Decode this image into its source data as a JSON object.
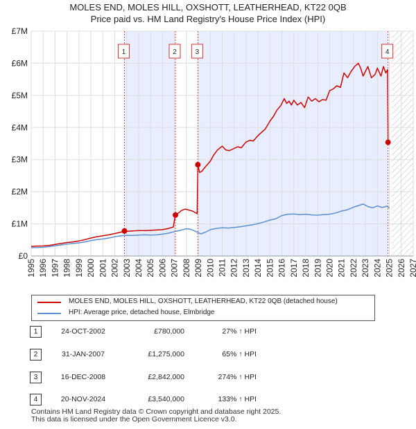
{
  "header": {
    "title_line1": "MOLES END, MOLES HILL, OXSHOTT, LEATHERHEAD, KT22 0QB",
    "title_line2": "Price paid vs. HM Land Registry's House Price Index (HPI)"
  },
  "colors": {
    "property": "#cc0000",
    "hpi": "#5b8fd0",
    "shade": "#e8eeff",
    "hatch": "#bbbbbb",
    "grid": "#dddddd",
    "marker_line": "#dd4444"
  },
  "chart_data": {
    "type": "line",
    "xlim": [
      1995,
      2027
    ],
    "ylim": [
      0,
      7000000
    ],
    "y_ticks": [
      {
        "value": 0,
        "label": "£0"
      },
      {
        "value": 1000000,
        "label": "£1M"
      },
      {
        "value": 2000000,
        "label": "£2M"
      },
      {
        "value": 3000000,
        "label": "£3M"
      },
      {
        "value": 4000000,
        "label": "£4M"
      },
      {
        "value": 5000000,
        "label": "£5M"
      },
      {
        "value": 6000000,
        "label": "£6M"
      },
      {
        "value": 7000000,
        "label": "£7M"
      }
    ],
    "x_ticks": [
      "1995",
      "1996",
      "1997",
      "1998",
      "1999",
      "2000",
      "2001",
      "2002",
      "2003",
      "2004",
      "2005",
      "2006",
      "2007",
      "2008",
      "2009",
      "2010",
      "2011",
      "2012",
      "2013",
      "2014",
      "2015",
      "2016",
      "2017",
      "2018",
      "2019",
      "2020",
      "2021",
      "2022",
      "2023",
      "2024",
      "2025",
      "2026",
      "2027"
    ],
    "grid": true,
    "shaded_ranges": [
      [
        2002.81,
        2007.08
      ],
      [
        2008.96,
        2024.89
      ]
    ],
    "future_hatch_from": 2025.2,
    "series": [
      {
        "name": "MOLES END, MOLES HILL, OXSHOTT, LEATHERHEAD, KT22 0QB (detached house)",
        "x": [
          1995.0,
          1995.5,
          1996.0,
          1996.5,
          1997.0,
          1997.5,
          1998.0,
          1998.5,
          1999.0,
          1999.5,
          2000.0,
          2000.5,
          2001.0,
          2001.5,
          2002.0,
          2002.5,
          2002.81,
          2003.0,
          2003.5,
          2004.0,
          2004.5,
          2005.0,
          2005.5,
          2006.0,
          2006.5,
          2006.9,
          2007.08,
          2007.3,
          2007.6,
          2007.9,
          2008.2,
          2008.5,
          2008.9,
          2008.96,
          2009.1,
          2009.3,
          2009.6,
          2010.0,
          2010.3,
          2010.6,
          2011.0,
          2011.3,
          2011.6,
          2012.0,
          2012.3,
          2012.6,
          2013.0,
          2013.3,
          2013.6,
          2014.0,
          2014.3,
          2014.6,
          2015.0,
          2015.3,
          2015.6,
          2015.9,
          2016.2,
          2016.4,
          2016.6,
          2016.8,
          2017.0,
          2017.3,
          2017.6,
          2017.9,
          2018.2,
          2018.5,
          2018.8,
          2019.1,
          2019.4,
          2019.7,
          2020.0,
          2020.3,
          2020.6,
          2020.9,
          2021.2,
          2021.5,
          2021.8,
          2022.1,
          2022.4,
          2022.6,
          2022.8,
          2023.0,
          2023.2,
          2023.5,
          2023.8,
          2024.0,
          2024.3,
          2024.5,
          2024.7,
          2024.85,
          2024.89,
          2025.0
        ],
        "y": [
          300000,
          310000,
          315000,
          330000,
          360000,
          390000,
          420000,
          440000,
          470000,
          510000,
          560000,
          600000,
          630000,
          660000,
          700000,
          740000,
          780000,
          770000,
          780000,
          790000,
          790000,
          800000,
          810000,
          820000,
          860000,
          900000,
          1275000,
          1330000,
          1420000,
          1460000,
          1430000,
          1400000,
          1320000,
          2842000,
          2600000,
          2640000,
          2780000,
          2950000,
          3150000,
          3300000,
          3420000,
          3300000,
          3280000,
          3350000,
          3400000,
          3370000,
          3550000,
          3600000,
          3580000,
          3750000,
          3850000,
          3950000,
          4200000,
          4350000,
          4550000,
          4680000,
          4900000,
          4750000,
          4820000,
          4700000,
          4850000,
          4700000,
          4780000,
          4620000,
          4950000,
          4820000,
          4900000,
          4800000,
          4870000,
          4850000,
          5150000,
          5200000,
          5300000,
          5250000,
          5700000,
          5550000,
          5750000,
          5900000,
          6000000,
          5850000,
          5600000,
          5750000,
          5900000,
          5550000,
          5650000,
          5850000,
          5600000,
          5900000,
          5700000,
          5800000,
          3540000,
          3500000
        ]
      },
      {
        "name": "HPI: Average price, detached house, Elmbridge",
        "x": [
          1995.0,
          1995.5,
          1996.0,
          1996.5,
          1997.0,
          1997.5,
          1998.0,
          1998.5,
          1999.0,
          1999.5,
          2000.0,
          2000.5,
          2001.0,
          2001.5,
          2002.0,
          2002.5,
          2003.0,
          2003.5,
          2004.0,
          2004.5,
          2005.0,
          2005.5,
          2006.0,
          2006.5,
          2007.0,
          2007.5,
          2008.0,
          2008.4,
          2008.8,
          2009.2,
          2009.6,
          2010.0,
          2010.5,
          2011.0,
          2011.5,
          2012.0,
          2012.5,
          2013.0,
          2013.5,
          2014.0,
          2014.5,
          2015.0,
          2015.5,
          2016.0,
          2016.5,
          2017.0,
          2017.5,
          2018.0,
          2018.5,
          2019.0,
          2019.5,
          2020.0,
          2020.5,
          2021.0,
          2021.5,
          2022.0,
          2022.5,
          2022.8,
          2023.2,
          2023.6,
          2024.0,
          2024.4,
          2024.8,
          2025.0
        ],
        "y": [
          260000,
          265000,
          275000,
          290000,
          320000,
          345000,
          370000,
          390000,
          410000,
          440000,
          480000,
          510000,
          530000,
          560000,
          600000,
          630000,
          640000,
          640000,
          650000,
          660000,
          650000,
          660000,
          680000,
          710000,
          760000,
          800000,
          850000,
          830000,
          760000,
          690000,
          740000,
          820000,
          860000,
          880000,
          870000,
          890000,
          910000,
          940000,
          970000,
          1010000,
          1060000,
          1120000,
          1160000,
          1260000,
          1300000,
          1310000,
          1290000,
          1300000,
          1280000,
          1270000,
          1290000,
          1300000,
          1340000,
          1400000,
          1440000,
          1520000,
          1580000,
          1620000,
          1540000,
          1500000,
          1560000,
          1510000,
          1550000,
          1490000
        ]
      }
    ],
    "sales": [
      {
        "label": "1",
        "x": 2002.81,
        "y": 780000
      },
      {
        "label": "2",
        "x": 2007.08,
        "y": 1275000
      },
      {
        "label": "3",
        "x": 2008.96,
        "y": 2842000
      },
      {
        "label": "4",
        "x": 2024.89,
        "y": 3540000
      }
    ]
  },
  "legend": {
    "property_label": "MOLES END, MOLES HILL, OXSHOTT, LEATHERHEAD, KT22 0QB (detached house)",
    "hpi_label": "HPI: Average price, detached house, Elmbridge"
  },
  "sales_table": [
    {
      "num": "1",
      "date": "24-OCT-2002",
      "price": "£780,000",
      "hpi": "27% ↑ HPI"
    },
    {
      "num": "2",
      "date": "31-JAN-2007",
      "price": "£1,275,000",
      "hpi": "65% ↑ HPI"
    },
    {
      "num": "3",
      "date": "16-DEC-2008",
      "price": "£2,842,000",
      "hpi": "274% ↑ HPI"
    },
    {
      "num": "4",
      "date": "20-NOV-2024",
      "price": "£3,540,000",
      "hpi": "133% ↑ HPI"
    }
  ],
  "footer": {
    "line1": "Contains HM Land Registry data © Crown copyright and database right 2025.",
    "line2": "This data is licensed under the Open Government Licence v3.0."
  }
}
